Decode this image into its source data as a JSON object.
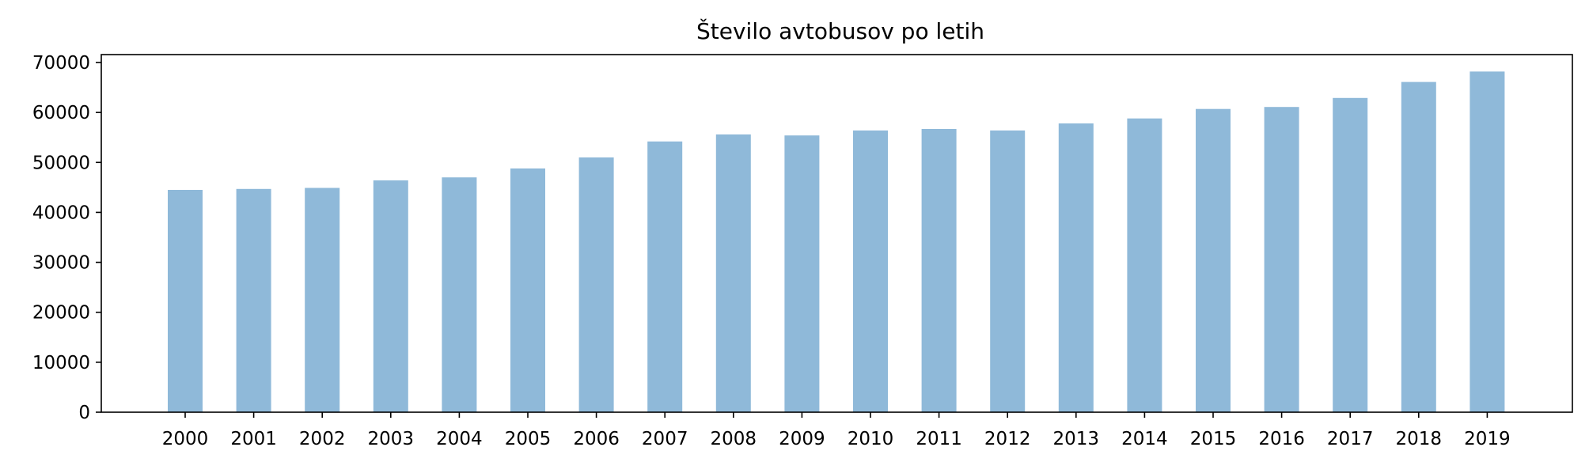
{
  "chart_data": {
    "type": "bar",
    "title": "Število avtobusov po letih",
    "xlabel": "",
    "ylabel": "",
    "categories": [
      "2000",
      "2001",
      "2002",
      "2003",
      "2004",
      "2005",
      "2006",
      "2007",
      "2008",
      "2009",
      "2010",
      "2011",
      "2012",
      "2013",
      "2014",
      "2015",
      "2016",
      "2017",
      "2018",
      "2019"
    ],
    "values": [
      44500,
      44700,
      44900,
      46400,
      47000,
      48800,
      51000,
      54200,
      55600,
      55400,
      56400,
      56700,
      56400,
      57800,
      58800,
      60700,
      61100,
      62900,
      66100,
      68200
    ],
    "ylim": [
      0,
      70000
    ],
    "yticks": [
      "0",
      "10000",
      "20000",
      "30000",
      "40000",
      "50000",
      "60000",
      "70000"
    ],
    "bar_color": "#8fb9d9",
    "grid": false,
    "legend": "none"
  }
}
